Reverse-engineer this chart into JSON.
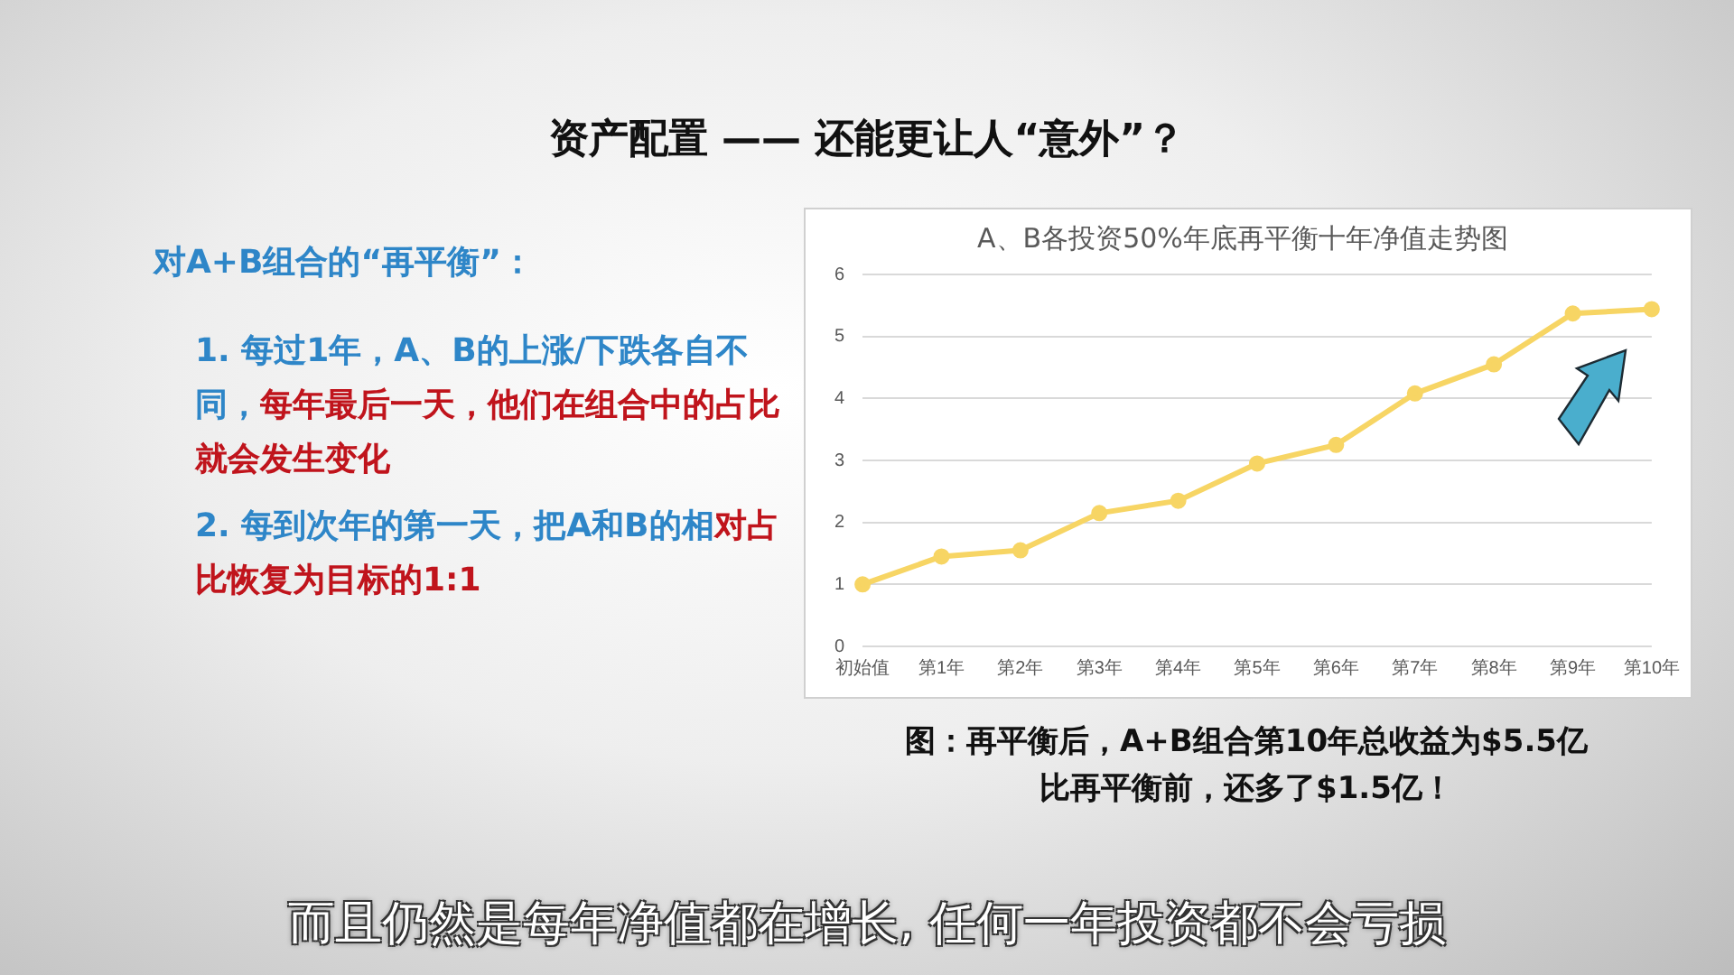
{
  "chart_data": {
    "type": "line",
    "title": "A、B各投资50%年底再平衡十年净值走势图",
    "categories": [
      "初始值",
      "第1年",
      "第2年",
      "第3年",
      "第4年",
      "第5年",
      "第6年",
      "第7年",
      "第8年",
      "第9年",
      "第10年"
    ],
    "values": [
      1.0,
      1.45,
      1.55,
      2.15,
      2.35,
      2.95,
      3.25,
      4.08,
      4.55,
      5.37,
      5.44
    ],
    "color": "#f7d564",
    "ylim": [
      0,
      6
    ],
    "yticks": [
      0,
      1,
      2,
      3,
      4,
      5,
      6
    ],
    "grid": "y",
    "legend": false,
    "marker": "circle",
    "line_style": "solid",
    "annotations": [
      "资产配置 —— 还能更让人“意外”？",
      "对A+B组合的“再平衡”：",
      "1. 每过1年，A、B的上涨/下跌各自不同，",
      "每年最后一天，他们在组合中的占比就会发生变化",
      "2. 每到次年的第一天，把A和B的相",
      "对占比恢复为目标的1:1",
      "图：再平衡后，A+B组合第10年总收益为$5.5亿",
      "比再平衡前，还多了$1.5亿！",
      "而且仍然是每年净值都在增长, 任何一年投资都不会亏损"
    ]
  }
}
